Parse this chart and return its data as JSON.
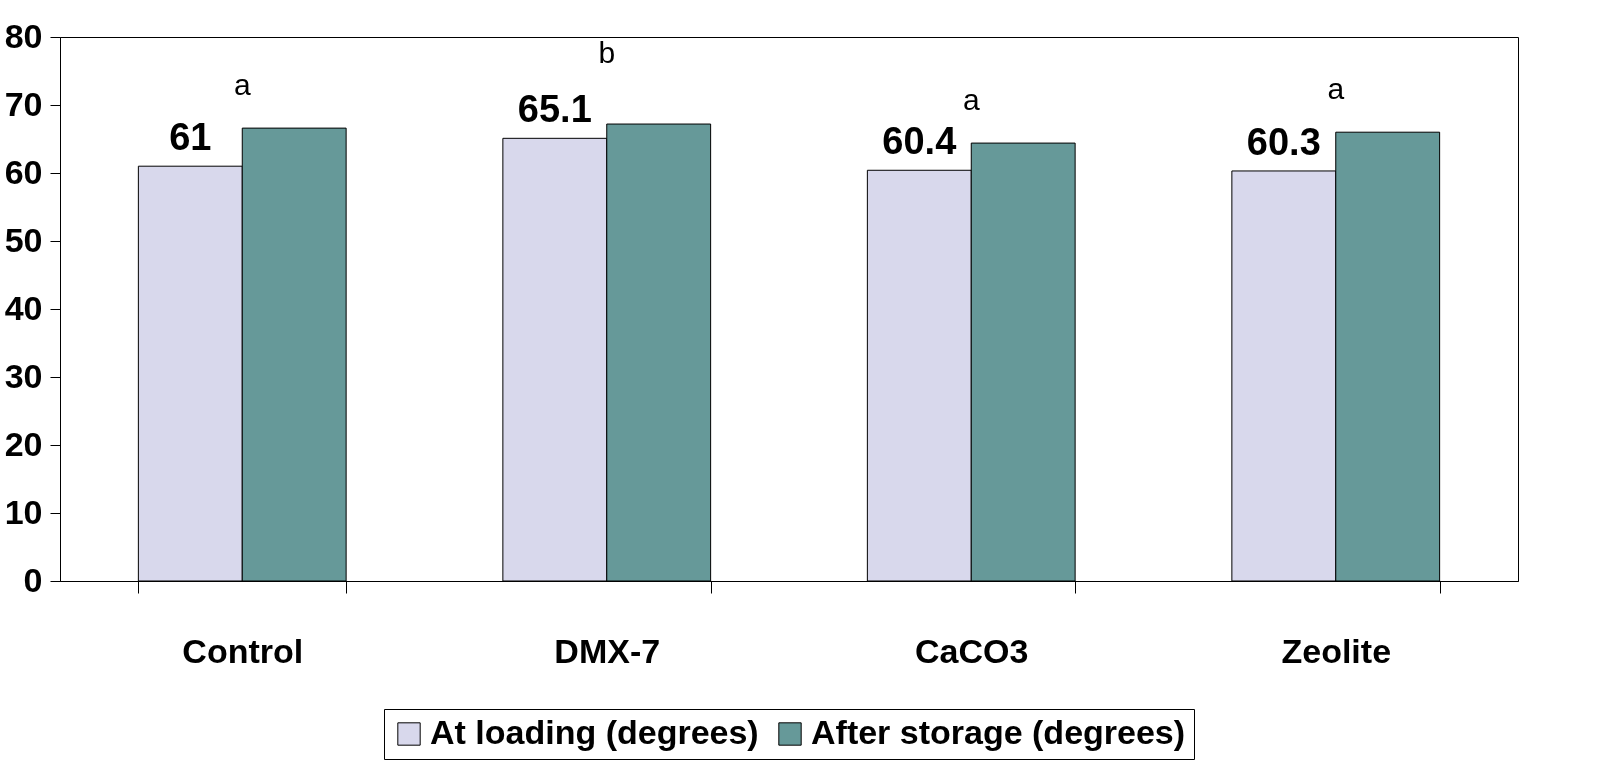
{
  "chart_data": {
    "type": "bar",
    "categories": [
      "Control",
      "DMX-7",
      "CaCO3",
      "Zeolite"
    ],
    "series": [
      {
        "name": "At loading (degrees)",
        "color": "#d8d8ec",
        "values": [
          61,
          65.1,
          60.4,
          60.3
        ],
        "value_labels": [
          "61",
          "65.1",
          "60.4",
          "60.3"
        ]
      },
      {
        "name": "After storage (degrees)",
        "color": "#669999",
        "values": [
          66.6,
          67.2,
          64.4,
          66.0
        ]
      }
    ],
    "annotations": [
      "a",
      "b",
      "a",
      "a"
    ],
    "ylim": [
      0,
      80
    ],
    "yticks": [
      0,
      10,
      20,
      30,
      40,
      50,
      60,
      70,
      80
    ],
    "grid": false,
    "legend": "bottom"
  }
}
